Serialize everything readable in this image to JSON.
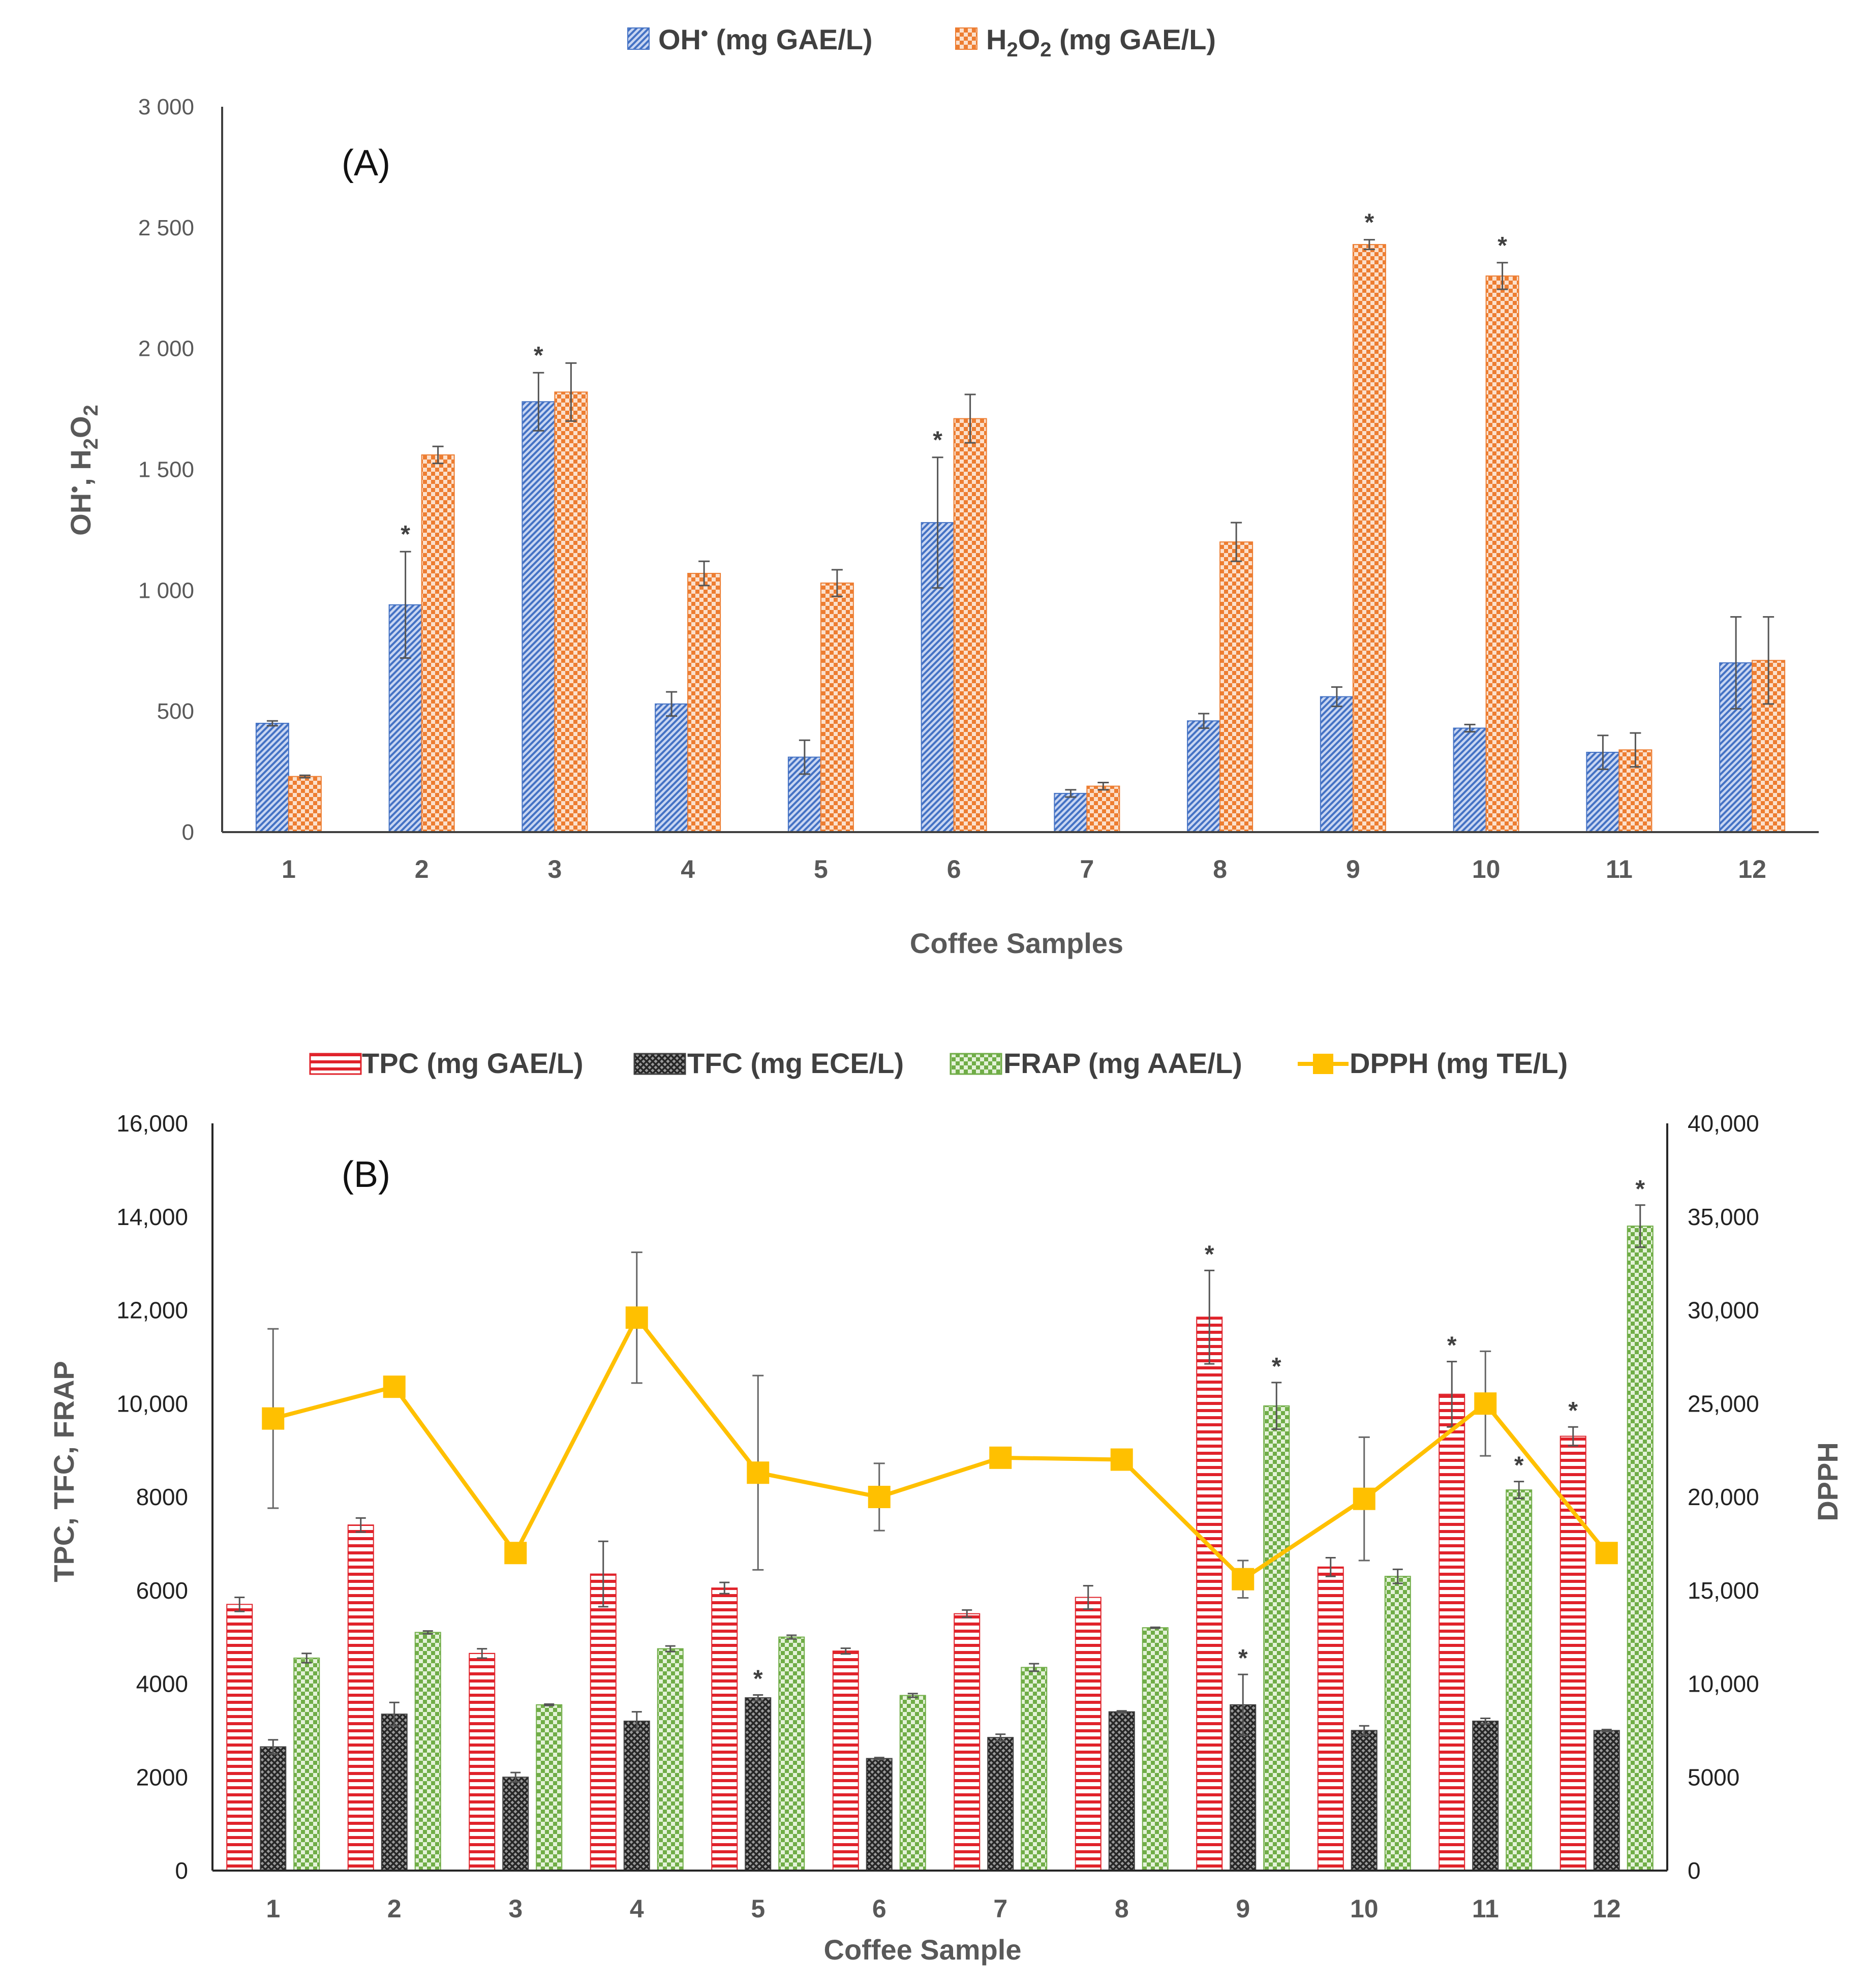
{
  "chart_data": [
    {
      "type": "bar",
      "panel_label": "(A)",
      "xlabel": "Coffee Samples",
      "ylabel_parts": [
        "OH",
        "•",
        ", H",
        "2",
        "O",
        "2"
      ],
      "ylim": [
        0,
        3000
      ],
      "yticks": [
        0,
        500,
        1000,
        1500,
        2000,
        2500,
        3000
      ],
      "ytick_labels": [
        "0",
        "500",
        "1 000",
        "1 500",
        "2 000",
        "2 500",
        "3 000"
      ],
      "categories": [
        "1",
        "2",
        "3",
        "4",
        "5",
        "6",
        "7",
        "8",
        "9",
        "10",
        "11",
        "12"
      ],
      "series": [
        {
          "name_parts": [
            "OH",
            "•",
            " (mg GAE/L)"
          ],
          "color": "#4472C4",
          "values": [
            450,
            940,
            1780,
            530,
            310,
            1280,
            160,
            460,
            560,
            430,
            330,
            700
          ],
          "errors": [
            10,
            220,
            120,
            50,
            70,
            270,
            15,
            30,
            40,
            15,
            70,
            190
          ],
          "significant": [
            false,
            true,
            true,
            false,
            false,
            true,
            false,
            false,
            false,
            false,
            false,
            false
          ]
        },
        {
          "name_parts": [
            "H",
            "2",
            "O",
            "2",
            " (mg GAE/L)"
          ],
          "color": "#ED7D31",
          "values": [
            230,
            1560,
            1820,
            1070,
            1030,
            1710,
            190,
            1200,
            2430,
            2300,
            340,
            710
          ],
          "errors": [
            5,
            35,
            120,
            50,
            55,
            100,
            15,
            80,
            20,
            55,
            70,
            180
          ],
          "significant": [
            false,
            false,
            false,
            false,
            false,
            false,
            false,
            false,
            true,
            true,
            false,
            false
          ]
        }
      ]
    },
    {
      "type": "bar_line_combo",
      "panel_label": "(B)",
      "xlabel": "Coffee Sample",
      "ylabel_left": "TPC, TFC, FRAP",
      "ylabel_right": "DPPH",
      "ylim_left": [
        0,
        16000
      ],
      "ylim_right": [
        0,
        40000
      ],
      "yticks_left": [
        0,
        2000,
        4000,
        6000,
        8000,
        10000,
        12000,
        14000,
        16000
      ],
      "ytick_labels_left": [
        "0",
        "2000",
        "4000",
        "6000",
        "8000",
        "10,000",
        "12,000",
        "14,000",
        "16,000"
      ],
      "yticks_right": [
        0,
        5000,
        10000,
        15000,
        20000,
        25000,
        30000,
        35000,
        40000
      ],
      "ytick_labels_right": [
        "0",
        "5000",
        "10,000",
        "15,000",
        "20,000",
        "25,000",
        "30,000",
        "35,000",
        "40,000"
      ],
      "categories": [
        "1",
        "2",
        "3",
        "4",
        "5",
        "6",
        "7",
        "8",
        "9",
        "10",
        "11",
        "12"
      ],
      "series": [
        {
          "name": "TPC (mg GAE/L)",
          "kind": "bar",
          "axis": "left",
          "color": "#E0232B",
          "values": [
            5700,
            7400,
            4650,
            6350,
            6050,
            4700,
            5500,
            5850,
            11850,
            6500,
            10200,
            9300
          ],
          "errors": [
            150,
            150,
            100,
            700,
            120,
            60,
            80,
            250,
            1000,
            200,
            700,
            200
          ],
          "significant": [
            false,
            false,
            false,
            false,
            false,
            false,
            false,
            false,
            true,
            false,
            true,
            true
          ]
        },
        {
          "name": "TFC (mg ECE/L)",
          "kind": "bar",
          "axis": "left",
          "color": "#404040",
          "values": [
            2650,
            3350,
            2000,
            3200,
            3700,
            2400,
            2850,
            3400,
            3550,
            3000,
            3200,
            3000
          ],
          "errors": [
            150,
            250,
            100,
            200,
            60,
            20,
            70,
            20,
            650,
            100,
            60,
            20
          ],
          "significant": [
            false,
            false,
            false,
            false,
            true,
            false,
            false,
            false,
            true,
            false,
            false,
            false
          ]
        },
        {
          "name": "FRAP (mg AAE/L)",
          "kind": "bar",
          "axis": "left",
          "color": "#70AD47",
          "values": [
            4550,
            5100,
            3550,
            4750,
            5000,
            3750,
            4350,
            5200,
            9950,
            6300,
            8150,
            13800
          ],
          "errors": [
            100,
            30,
            15,
            60,
            40,
            40,
            80,
            10,
            500,
            150,
            180,
            450
          ],
          "significant": [
            false,
            false,
            false,
            false,
            false,
            false,
            false,
            false,
            true,
            false,
            true,
            true
          ]
        },
        {
          "name": "DPPH (mg TE/L)",
          "kind": "line",
          "axis": "right",
          "color": "#FFC000",
          "values": [
            24200,
            25900,
            17000,
            29600,
            21300,
            20000,
            22100,
            22000,
            15600,
            19900,
            25000,
            17000
          ],
          "errors": [
            4800,
            500,
            200,
            3500,
            5200,
            1800,
            0,
            500,
            1000,
            3300,
            2800,
            0
          ],
          "significant": [
            false,
            false,
            false,
            false,
            false,
            false,
            false,
            false,
            false,
            false,
            false,
            false
          ]
        }
      ]
    }
  ]
}
